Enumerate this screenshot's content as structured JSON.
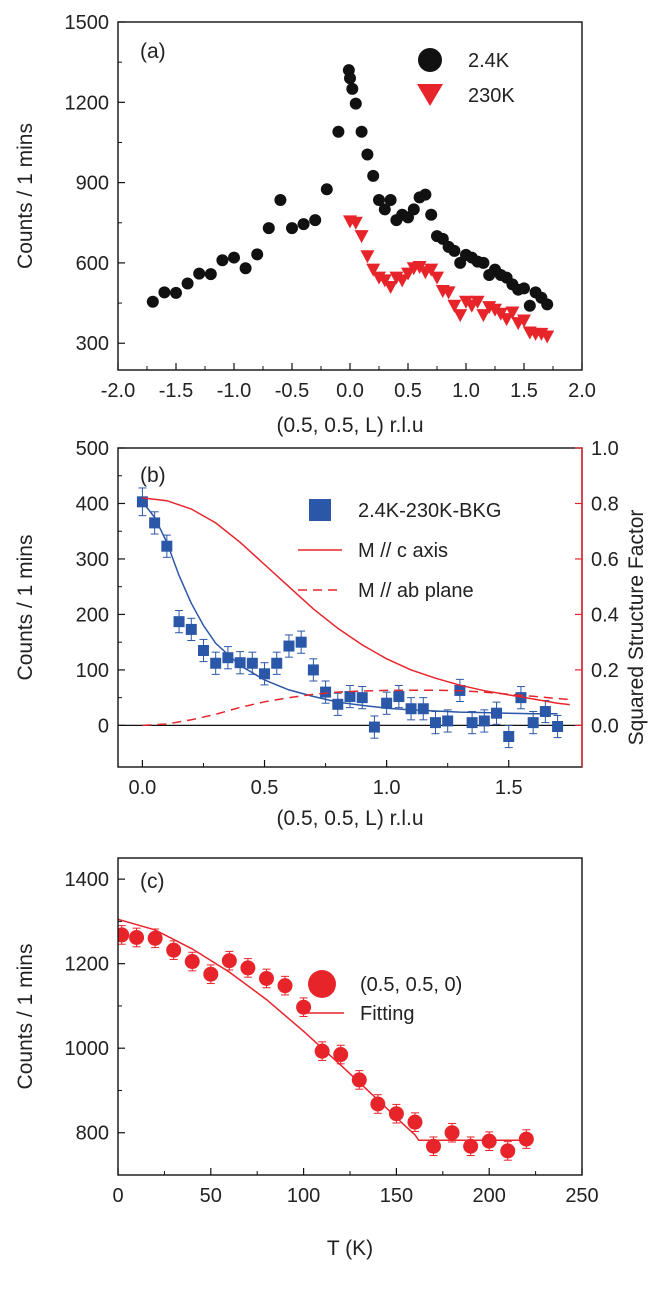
{
  "chart_data": [
    {
      "type": "scatter",
      "panel_label": "(a)",
      "xlabel": "(0.5, 0.5, L) r.l.u",
      "ylabel": "Counts / 1 mins",
      "xlim": [
        -2.0,
        2.0
      ],
      "ylim": [
        200,
        1500
      ],
      "xticks": [
        "-2.0",
        "-1.5",
        "-1.0",
        "-0.5",
        "0.0",
        "0.5",
        "1.0",
        "1.5",
        "2.0"
      ],
      "yticks": [
        "300",
        "600",
        "900",
        "1200",
        "1500"
      ],
      "legend_position": "top-right",
      "series": [
        {
          "name": "2.4K",
          "color": "#111111",
          "marker": "circle",
          "points": [
            [
              -1.7,
              455
            ],
            [
              -1.6,
              490
            ],
            [
              -1.5,
              488
            ],
            [
              -1.4,
              523
            ],
            [
              -1.3,
              560
            ],
            [
              -1.2,
              558
            ],
            [
              -1.1,
              610
            ],
            [
              -1.0,
              620
            ],
            [
              -0.9,
              580
            ],
            [
              -0.8,
              632
            ],
            [
              -0.7,
              730
            ],
            [
              -0.6,
              835
            ],
            [
              -0.5,
              730
            ],
            [
              -0.4,
              745
            ],
            [
              -0.3,
              760
            ],
            [
              -0.2,
              875
            ],
            [
              -0.1,
              1090
            ],
            [
              -0.01,
              1320
            ],
            [
              0.0,
              1290
            ],
            [
              0.02,
              1250
            ],
            [
              0.05,
              1195
            ],
            [
              0.1,
              1090
            ],
            [
              0.15,
              1005
            ],
            [
              0.2,
              925
            ],
            [
              0.25,
              835
            ],
            [
              0.3,
              800
            ],
            [
              0.35,
              835
            ],
            [
              0.4,
              760
            ],
            [
              0.45,
              780
            ],
            [
              0.5,
              770
            ],
            [
              0.55,
              800
            ],
            [
              0.6,
              845
            ],
            [
              0.65,
              855
            ],
            [
              0.7,
              780
            ],
            [
              0.75,
              700
            ],
            [
              0.8,
              690
            ],
            [
              0.85,
              660
            ],
            [
              0.9,
              645
            ],
            [
              0.95,
              600
            ],
            [
              1.0,
              630
            ],
            [
              1.05,
              620
            ],
            [
              1.1,
              605
            ],
            [
              1.15,
              600
            ],
            [
              1.2,
              555
            ],
            [
              1.25,
              575
            ],
            [
              1.3,
              555
            ],
            [
              1.35,
              545
            ],
            [
              1.4,
              520
            ],
            [
              1.45,
              500
            ],
            [
              1.5,
              505
            ],
            [
              1.55,
              440
            ],
            [
              1.6,
              490
            ],
            [
              1.65,
              470
            ],
            [
              1.7,
              445
            ]
          ]
        },
        {
          "name": "230K",
          "color": "#e8242b",
          "marker": "triangle-down",
          "points": [
            [
              0.0,
              755
            ],
            [
              0.05,
              750
            ],
            [
              0.1,
              700
            ],
            [
              0.15,
              625
            ],
            [
              0.2,
              575
            ],
            [
              0.25,
              545
            ],
            [
              0.3,
              535
            ],
            [
              0.35,
              510
            ],
            [
              0.4,
              545
            ],
            [
              0.45,
              535
            ],
            [
              0.5,
              560
            ],
            [
              0.55,
              580
            ],
            [
              0.6,
              585
            ],
            [
              0.65,
              565
            ],
            [
              0.7,
              575
            ],
            [
              0.75,
              545
            ],
            [
              0.8,
              495
            ],
            [
              0.85,
              490
            ],
            [
              0.9,
              440
            ],
            [
              0.95,
              405
            ],
            [
              1.0,
              455
            ],
            [
              1.05,
              440
            ],
            [
              1.1,
              455
            ],
            [
              1.15,
              405
            ],
            [
              1.2,
              435
            ],
            [
              1.25,
              425
            ],
            [
              1.3,
              410
            ],
            [
              1.35,
              390
            ],
            [
              1.4,
              415
            ],
            [
              1.45,
              375
            ],
            [
              1.5,
              385
            ],
            [
              1.55,
              340
            ],
            [
              1.6,
              335
            ],
            [
              1.65,
              335
            ],
            [
              1.7,
              325
            ]
          ]
        }
      ]
    },
    {
      "type": "scatter",
      "panel_label": "(b)",
      "xlabel": "(0.5, 0.5, L) r.l.u",
      "ylabel": "Counts / 1 mins",
      "y2label": "Squared Structure Factor",
      "xlim": [
        -0.1,
        1.8
      ],
      "ylim": [
        -75,
        500
      ],
      "y2lim": [
        -0.15,
        1.0
      ],
      "xticks": [
        "0.0",
        "0.5",
        "1.0",
        "1.5"
      ],
      "yticks": [
        "0",
        "100",
        "200",
        "300",
        "400",
        "500"
      ],
      "y2ticks": [
        "0.0",
        "0.2",
        "0.4",
        "0.6",
        "0.8",
        "1.0"
      ],
      "legend_position": "top-right",
      "series": [
        {
          "name": "2.4K-230K-BKG",
          "color": "#2b57a8",
          "marker": "square",
          "points": [
            [
              0.0,
              403,
              25
            ],
            [
              0.05,
              365,
              20
            ],
            [
              0.1,
              323,
              20
            ],
            [
              0.15,
              187,
              20
            ],
            [
              0.2,
              173,
              20
            ],
            [
              0.25,
              135,
              20
            ],
            [
              0.3,
              112,
              20
            ],
            [
              0.35,
              122,
              20
            ],
            [
              0.4,
              113,
              20
            ],
            [
              0.45,
              112,
              20
            ],
            [
              0.5,
              93,
              20
            ],
            [
              0.55,
              112,
              20
            ],
            [
              0.6,
              143,
              20
            ],
            [
              0.65,
              150,
              20
            ],
            [
              0.7,
              100,
              20
            ],
            [
              0.75,
              60,
              20
            ],
            [
              0.8,
              38,
              20
            ],
            [
              0.85,
              52,
              20
            ],
            [
              0.9,
              50,
              20
            ],
            [
              0.95,
              -3,
              20
            ],
            [
              1.0,
              40,
              20
            ],
            [
              1.05,
              52,
              20
            ],
            [
              1.1,
              30,
              20
            ],
            [
              1.15,
              30,
              20
            ],
            [
              1.2,
              5,
              20
            ],
            [
              1.25,
              8,
              20
            ],
            [
              1.3,
              63,
              20
            ],
            [
              1.35,
              5,
              20
            ],
            [
              1.4,
              8,
              20
            ],
            [
              1.45,
              22,
              20
            ],
            [
              1.5,
              -20,
              20
            ],
            [
              1.55,
              50,
              20
            ],
            [
              1.6,
              5,
              20
            ],
            [
              1.65,
              25,
              20
            ],
            [
              1.7,
              -2,
              20
            ]
          ]
        },
        {
          "name": "",
          "color": "#2b57a8",
          "style": "solid-line",
          "points": [
            [
              0.0,
              403
            ],
            [
              0.05,
              375
            ],
            [
              0.1,
              330
            ],
            [
              0.15,
              270
            ],
            [
              0.2,
              220
            ],
            [
              0.25,
              180
            ],
            [
              0.3,
              148
            ],
            [
              0.4,
              108
            ],
            [
              0.5,
              82
            ],
            [
              0.6,
              64
            ],
            [
              0.7,
              52
            ],
            [
              0.8,
              42
            ],
            [
              0.9,
              36
            ],
            [
              1.0,
              31
            ],
            [
              1.1,
              28
            ],
            [
              1.2,
              26
            ],
            [
              1.3,
              24
            ],
            [
              1.4,
              23
            ],
            [
              1.5,
              22
            ],
            [
              1.6,
              21
            ],
            [
              1.7,
              21
            ]
          ]
        },
        {
          "name": "M // c axis",
          "color": "#e8242b",
          "style": "solid-line",
          "axis": "right",
          "points": [
            [
              0.0,
              0.82
            ],
            [
              0.1,
              0.81
            ],
            [
              0.2,
              0.78
            ],
            [
              0.3,
              0.73
            ],
            [
              0.4,
              0.66
            ],
            [
              0.5,
              0.58
            ],
            [
              0.6,
              0.5
            ],
            [
              0.7,
              0.42
            ],
            [
              0.8,
              0.35
            ],
            [
              0.9,
              0.29
            ],
            [
              1.0,
              0.24
            ],
            [
              1.1,
              0.2
            ],
            [
              1.2,
              0.17
            ],
            [
              1.3,
              0.145
            ],
            [
              1.4,
              0.125
            ],
            [
              1.5,
              0.11
            ],
            [
              1.6,
              0.095
            ],
            [
              1.7,
              0.08
            ],
            [
              1.75,
              0.075
            ]
          ]
        },
        {
          "name": "M // ab plane",
          "color": "#e8242b",
          "style": "dashed-line",
          "axis": "right",
          "points": [
            [
              0.0,
              0.0
            ],
            [
              0.1,
              0.005
            ],
            [
              0.2,
              0.02
            ],
            [
              0.3,
              0.04
            ],
            [
              0.4,
              0.065
            ],
            [
              0.5,
              0.085
            ],
            [
              0.6,
              0.1
            ],
            [
              0.7,
              0.112
            ],
            [
              0.8,
              0.12
            ],
            [
              0.9,
              0.124
            ],
            [
              1.0,
              0.126
            ],
            [
              1.1,
              0.127
            ],
            [
              1.2,
              0.127
            ],
            [
              1.3,
              0.125
            ],
            [
              1.4,
              0.12
            ],
            [
              1.5,
              0.112
            ],
            [
              1.6,
              0.105
            ],
            [
              1.7,
              0.097
            ],
            [
              1.75,
              0.093
            ]
          ]
        }
      ]
    },
    {
      "type": "scatter",
      "panel_label": "(c)",
      "xlabel": "T (K)",
      "ylabel": "Counts / 1 mins",
      "xlim": [
        0,
        250
      ],
      "ylim": [
        700,
        1450
      ],
      "xticks": [
        "0",
        "50",
        "100",
        "150",
        "200",
        "250"
      ],
      "yticks": [
        "800",
        "1000",
        "1200",
        "1400"
      ],
      "legend_position": "top-right",
      "series": [
        {
          "name": "(0.5, 0.5, 0)",
          "color": "#e8242b",
          "marker": "circle",
          "points": [
            [
              2,
              1268,
              22
            ],
            [
              10,
              1262,
              22
            ],
            [
              20,
              1260,
              22
            ],
            [
              30,
              1232,
              22
            ],
            [
              40,
              1205,
              22
            ],
            [
              50,
              1175,
              22
            ],
            [
              60,
              1207,
              22
            ],
            [
              70,
              1190,
              22
            ],
            [
              80,
              1165,
              22
            ],
            [
              90,
              1148,
              22
            ],
            [
              100,
              1097,
              22
            ],
            [
              110,
              993,
              22
            ],
            [
              120,
              985,
              22
            ],
            [
              130,
              925,
              22
            ],
            [
              140,
              868,
              22
            ],
            [
              150,
              845,
              22
            ],
            [
              160,
              825,
              22
            ],
            [
              170,
              768,
              22
            ],
            [
              180,
              800,
              22
            ],
            [
              190,
              768,
              22
            ],
            [
              200,
              780,
              22
            ],
            [
              210,
              757,
              22
            ],
            [
              220,
              785,
              22
            ]
          ]
        },
        {
          "name": "Fitting",
          "color": "#e8242b",
          "style": "solid-line",
          "points": [
            [
              0,
              1305
            ],
            [
              20,
              1280
            ],
            [
              40,
              1235
            ],
            [
              60,
              1180
            ],
            [
              80,
              1115
            ],
            [
              100,
              1040
            ],
            [
              120,
              960
            ],
            [
              140,
              878
            ],
            [
              155,
              815
            ],
            [
              160,
              795
            ],
            [
              162,
              782
            ],
            [
              170,
              782
            ],
            [
              200,
              782
            ],
            [
              222,
              782
            ]
          ]
        }
      ]
    }
  ]
}
